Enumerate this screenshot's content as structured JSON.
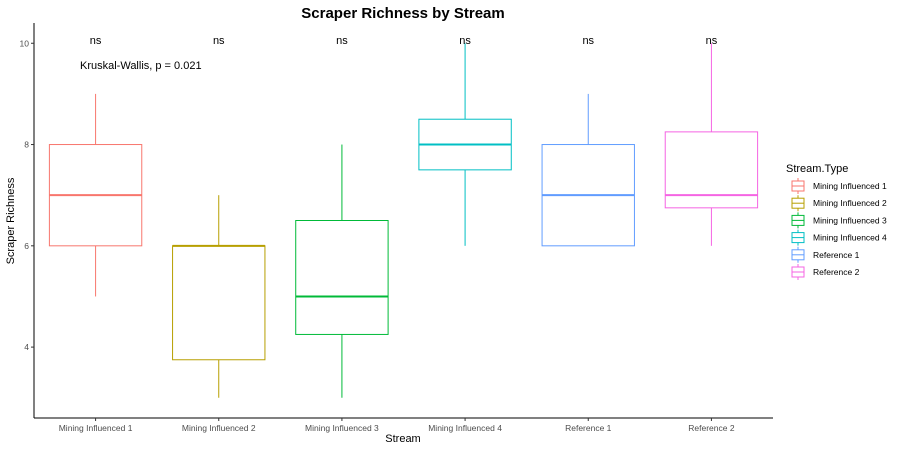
{
  "chart_data": {
    "type": "box",
    "title": "Scraper Richness by Stream",
    "xlabel": "Stream",
    "ylabel": "Scraper Richness",
    "ylim": [
      2.6,
      10.4
    ],
    "yticks": [
      4,
      6,
      8,
      10
    ],
    "grid": false,
    "legend_title": "Stream.Type",
    "legend_position": "right",
    "overall_test": "Kruskal-Wallis, p = 0.021",
    "categories": [
      "Mining Influenced 1",
      "Mining Influenced 2",
      "Mining Influenced 3",
      "Mining Influenced 4",
      "Reference 1",
      "Reference 2"
    ],
    "series": [
      {
        "name": "Mining Influenced 1",
        "color": "#F8766D",
        "min": 5,
        "q1": 6,
        "median": 7,
        "q3": 8,
        "max": 9,
        "signif": "ns"
      },
      {
        "name": "Mining Influenced 2",
        "color": "#B79F00",
        "min": 3,
        "q1": 3.75,
        "median": 6,
        "q3": 6,
        "max": 7,
        "signif": "ns"
      },
      {
        "name": "Mining Influenced 3",
        "color": "#00BA38",
        "min": 3,
        "q1": 4.25,
        "median": 5,
        "q3": 6.5,
        "max": 8,
        "signif": "ns"
      },
      {
        "name": "Mining Influenced 4",
        "color": "#00BFC4",
        "min": 6,
        "q1": 7.5,
        "median": 8,
        "q3": 8.5,
        "max": 10,
        "signif": "ns"
      },
      {
        "name": "Reference 1",
        "color": "#619CFF",
        "min": 6,
        "q1": 6,
        "median": 7,
        "q3": 8,
        "max": 9,
        "signif": "ns"
      },
      {
        "name": "Reference 2",
        "color": "#F564E3",
        "min": 6,
        "q1": 6.75,
        "median": 7,
        "q3": 8.25,
        "max": 10,
        "signif": "ns"
      }
    ]
  }
}
